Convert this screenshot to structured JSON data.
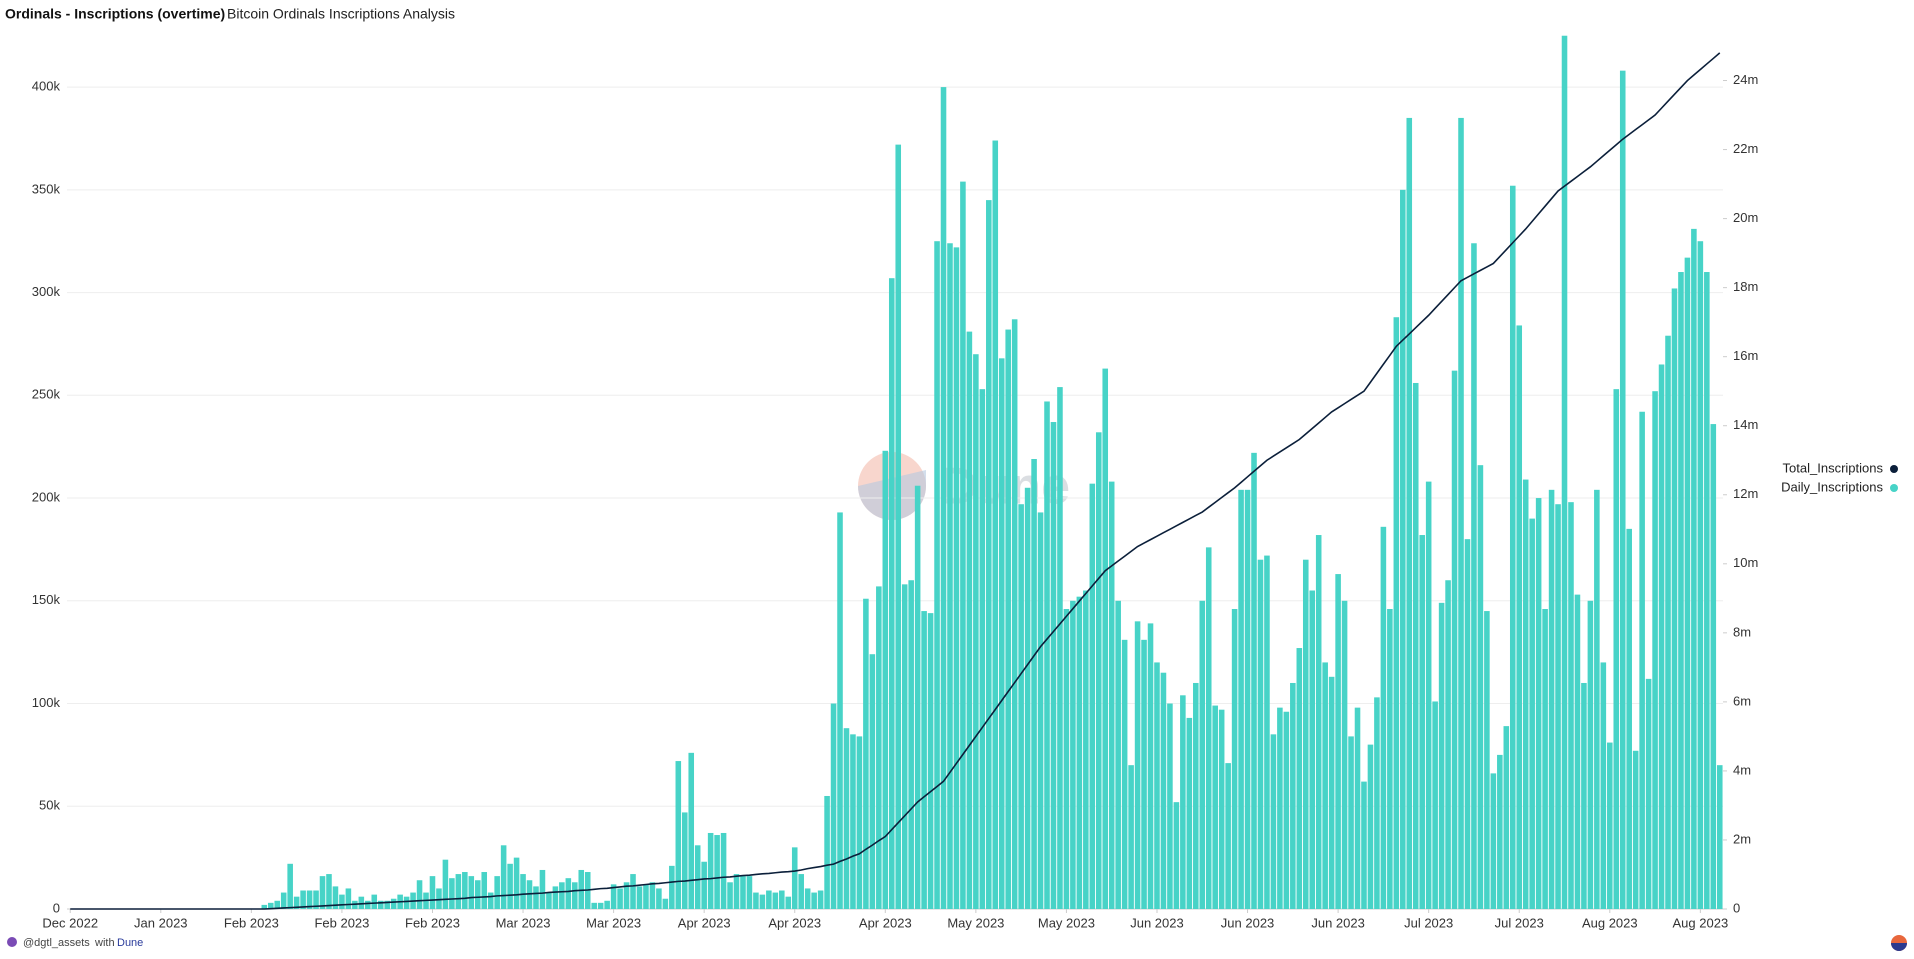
{
  "header": {
    "title": "Ordinals - Inscriptions (overtime)",
    "subtitle": "Bitcoin Ordinals Inscriptions Analysis"
  },
  "footer": {
    "author": "@dgtl_assets",
    "with": "with",
    "brand": "Dune"
  },
  "watermark": "Dune",
  "chart_data": {
    "type": "bar",
    "legend": "right",
    "grid": true,
    "categories": [
      "Dec 2022",
      null,
      null,
      null,
      null,
      null,
      null,
      null,
      null,
      null,
      null,
      null,
      null,
      null,
      "Jan 2023",
      null,
      null,
      null,
      null,
      null,
      null,
      null,
      null,
      null,
      null,
      null,
      null,
      null,
      "Feb 2023",
      null,
      null,
      null,
      null,
      null,
      null,
      null,
      null,
      null,
      null,
      null,
      null,
      null,
      "Feb 2023",
      null,
      null,
      null,
      null,
      null,
      null,
      null,
      null,
      null,
      null,
      null,
      null,
      null,
      "Feb 2023",
      null,
      null,
      null,
      null,
      null,
      null,
      null,
      null,
      null,
      null,
      null,
      null,
      null,
      "Mar 2023",
      null,
      null,
      null,
      null,
      null,
      null,
      null,
      null,
      null,
      null,
      null,
      null,
      null,
      "Mar 2023",
      null,
      null,
      null,
      null,
      null,
      null,
      null,
      null,
      null,
      null,
      null,
      null,
      null,
      "Apr 2023",
      null,
      null,
      null,
      null,
      null,
      null,
      null,
      null,
      null,
      null,
      null,
      null,
      null,
      "Apr 2023",
      null,
      null,
      null,
      null,
      null,
      null,
      null,
      null,
      null,
      null,
      null,
      null,
      null,
      "Apr 2023",
      null,
      null,
      null,
      null,
      null,
      null,
      null,
      null,
      null,
      null,
      null,
      null,
      null,
      "May 2023",
      null,
      null,
      null,
      null,
      null,
      null,
      null,
      null,
      null,
      null,
      null,
      null,
      null,
      "May 2023",
      null,
      null,
      null,
      null,
      null,
      null,
      null,
      null,
      null,
      null,
      null,
      null,
      null,
      "Jun 2023",
      null,
      null,
      null,
      null,
      null,
      null,
      null,
      null,
      null,
      null,
      null,
      null,
      null,
      "Jun 2023",
      null,
      null,
      null,
      null,
      null,
      null,
      null,
      null,
      null,
      null,
      null,
      null,
      null,
      "Jun 2023",
      null,
      null,
      null,
      null,
      null,
      null,
      null,
      null,
      null,
      null,
      null,
      null,
      null,
      "Jul 2023",
      null,
      null,
      null,
      null,
      null,
      null,
      null,
      null,
      null,
      null,
      null,
      null,
      null,
      "Jul 2023",
      null,
      null,
      null,
      null,
      null,
      null,
      null,
      null,
      null,
      null,
      null,
      null,
      null,
      "Aug 2023",
      null,
      null,
      null,
      null,
      null,
      null,
      null,
      null,
      null,
      null,
      null,
      null,
      null,
      "Aug 2023",
      null,
      null,
      null
    ],
    "ylim": [
      0,
      420000
    ],
    "yticks": [
      0,
      {
        "value": 50000,
        "label": "50k"
      },
      {
        "value": 100000,
        "label": "100k"
      },
      {
        "value": 150000,
        "label": "150k"
      },
      {
        "value": 200000,
        "label": "200k"
      },
      {
        "value": 250000,
        "label": "250k"
      },
      {
        "value": 300000,
        "label": "300k"
      },
      {
        "value": 350000,
        "label": "350k"
      },
      {
        "value": 400000,
        "label": "400k"
      }
    ],
    "y2lim": [
      0,
      25000000
    ],
    "y2ticks": [
      0,
      {
        "value": 2000000,
        "label": "2m"
      },
      {
        "value": 4000000,
        "label": "4m"
      },
      {
        "value": 6000000,
        "label": "6m"
      },
      {
        "value": 8000000,
        "label": "8m"
      },
      {
        "value": 10000000,
        "label": "10m"
      },
      {
        "value": 12000000,
        "label": "12m"
      },
      {
        "value": 14000000,
        "label": "14m"
      },
      {
        "value": 16000000,
        "label": "16m"
      },
      {
        "value": 18000000,
        "label": "18m"
      },
      {
        "value": 20000000,
        "label": "20m"
      },
      {
        "value": 22000000,
        "label": "22m"
      },
      {
        "value": 24000000,
        "label": "24m"
      }
    ],
    "series": [
      {
        "name": "Total_Inscriptions",
        "type": "line",
        "axis": "y2",
        "color": "#0b1f3a",
        "values": [
          0,
          0,
          0,
          0,
          0,
          0,
          0,
          0,
          0,
          0,
          0,
          0,
          0,
          0,
          0,
          0,
          0,
          0,
          0,
          0,
          0,
          0,
          0,
          0,
          0,
          0,
          0,
          0,
          0,
          0,
          0,
          10000.0,
          20000.0,
          30000.0,
          40000.0,
          50000.0,
          60000.0,
          70000.0,
          80000.0,
          90000.0,
          100000.0,
          110000.0,
          120000.0,
          130000.0,
          140000.0,
          150000.0,
          160000.0,
          170000.0,
          180000.0,
          190000.0,
          200000.0,
          210000.0,
          220000.0,
          230000.0,
          240000.0,
          250000.0,
          260000.0,
          270000.0,
          280000.0,
          290000.0,
          300000.0,
          310000.0,
          330000.0,
          340000.0,
          350000.0,
          360000.0,
          380000.0,
          390000.0,
          400000.0,
          410000.0,
          430000.0,
          440000.0,
          450000.0,
          460000.0,
          480000.0,
          490000.0,
          500000.0,
          510000.0,
          530000.0,
          540000.0,
          550000.0,
          570000.0,
          590000.0,
          600000.0,
          620000.0,
          640000.0,
          660000.0,
          670000.0,
          690000.0,
          710000.0,
          730000.0,
          740000.0,
          760000.0,
          780000.0,
          800000.0,
          810000.0,
          830000.0,
          850000.0,
          870000.0,
          880000.0,
          900000.0,
          920000.0,
          930000.0,
          950000.0,
          970000.0,
          980000.0,
          1000000.0,
          1020000.0,
          1030000.0,
          1050000.0,
          1070000.0,
          1080000.0,
          1100000.0,
          1130000.0,
          1170000.0,
          1200000.0,
          1230000.0,
          1270000.0,
          1300000.0,
          1380000.0,
          1450000.0,
          1530000.0,
          1600000.0,
          1730000.0,
          1850000.0,
          1980000.0,
          2100000.0,
          2300000.0,
          2500000.0,
          2700000.0,
          2900000.0,
          3100000.0,
          3250000.0,
          3400000.0,
          3550000.0,
          3700000.0,
          3960000.0,
          4220000.0,
          4480000.0,
          4740000.0,
          5000000.0,
          5260000.0,
          5520000.0,
          5780000.0,
          6040000.0,
          6300000.0,
          6560000.0,
          6820000.0,
          7080000.0,
          7340000.0,
          7600000.0,
          7820000.0,
          8040000.0,
          8260000.0,
          8480000.0,
          8700000.0,
          8920000.0,
          9140000.0,
          9360000.0,
          9580000.0,
          9800000.0,
          9940000.0,
          10080000.0,
          10220000.0,
          10360000.0,
          10500000.0,
          10600000.0,
          10700000.0,
          10800000.0,
          10900000.0,
          11000000.0,
          11100000.0,
          11200000.0,
          11300000.0,
          11400000.0,
          11500000.0,
          11640000.0,
          11780000.0,
          11920000.0,
          12060000.0,
          12200000.0,
          12360000.0,
          12520000.0,
          12680000.0,
          12840000.0,
          13000000.0,
          13120000.0,
          13240000.0,
          13360000.0,
          13480000.0,
          13600000.0,
          13760000.0,
          13920000.0,
          14080000.0,
          14240000.0,
          14400000.0,
          14520000.0,
          14640000.0,
          14760000.0,
          14880000.0,
          15000000.0,
          15260000.0,
          15520000.0,
          15780000.0,
          16040000.0,
          16300000.0,
          16480000.0,
          16660000.0,
          16840000.0,
          17020000.0,
          17200000.0,
          17400000.0,
          17600000.0,
          17800000.0,
          18000000.0,
          18200000.0,
          18300000.0,
          18400000.0,
          18500000.0,
          18600000.0,
          18700000.0,
          18900000.0,
          19100000.0,
          19300000.0,
          19500000.0,
          19700000.0,
          19920000.0,
          20140000.0,
          20360000.0,
          20580000.0,
          20800000.0,
          20940000.0,
          21080000.0,
          21220000.0,
          21360000.0,
          21500000.0,
          21660000.0,
          21820000.0,
          21980000.0,
          22140000.0,
          22300000.0,
          22440000.0,
          22580000.0,
          22720000.0,
          22860000.0,
          23000000.0,
          23200000.0,
          23400000.0,
          23600000.0,
          23800000.0,
          24000000.0,
          24160000.0,
          24320000.0,
          24480000.0,
          24640000.0,
          24800000.0
        ]
      },
      {
        "name": "Daily_Inscriptions",
        "type": "bar",
        "color": "#47d3c7",
        "values": [
          0,
          0,
          0,
          0,
          0,
          0,
          0,
          0,
          0,
          0,
          0,
          0,
          0,
          0,
          0,
          0,
          0,
          0,
          0,
          0,
          0,
          0,
          0,
          0,
          0,
          0,
          0,
          0,
          0,
          0,
          2000.0,
          3000.0,
          4000.0,
          8000.0,
          22000.0,
          6000.0,
          9000.0,
          9000.0,
          9000.0,
          16000.0,
          17000.0,
          11000.0,
          7000.0,
          10000.0,
          4000.0,
          6000.0,
          4000.0,
          7000.0,
          4000.0,
          4000.0,
          5000.0,
          7000.0,
          6000.0,
          8000.0,
          14000.0,
          8000.0,
          16000.0,
          10000.0,
          24000.0,
          15000.0,
          17000.0,
          18000.0,
          16000.0,
          14000.0,
          18000.0,
          8000.0,
          16000.0,
          31000.0,
          22000.0,
          25000.0,
          17000.0,
          14000.0,
          11000.0,
          19000.0,
          8000.0,
          11000.0,
          13000.0,
          15000.0,
          13000.0,
          19000.0,
          18000.0,
          3000.0,
          3000.0,
          4000.0,
          12000.0,
          10000.0,
          13000.0,
          17000.0,
          11000.0,
          12000.0,
          13000.0,
          10000.0,
          5000.0,
          21000.0,
          72000.0,
          47000.0,
          76000.0,
          31000.0,
          23000.0,
          37000.0,
          36000.0,
          37000.0,
          13000.0,
          17000.0,
          16000.0,
          16000.0,
          8000.0,
          7000.0,
          9000.0,
          8000.0,
          9000.0,
          6000.0,
          30000.0,
          17000.0,
          10000.0,
          8000.0,
          9000.0,
          55000.0,
          100000.0,
          193000.0,
          88000.0,
          85000.0,
          84000.0,
          151000.0,
          124000.0,
          157000.0,
          223000.0,
          307000.0,
          372000.0,
          158000.0,
          160000.0,
          206000.0,
          145000.0,
          144000.0,
          325000.0,
          400000.0,
          324000.0,
          322000.0,
          354000.0,
          281000.0,
          270000.0,
          253000.0,
          345000.0,
          374000.0,
          268000.0,
          282000.0,
          287000.0,
          197000.0,
          205000.0,
          219000.0,
          193000.0,
          247000.0,
          237000.0,
          254000.0,
          146000.0,
          150000.0,
          152000.0,
          155000.0,
          207000.0,
          232000.0,
          263000.0,
          208000.0,
          150000.0,
          131000.0,
          70000.0,
          140000.0,
          131000.0,
          139000.0,
          120000.0,
          115000.0,
          100000.0,
          52000.0,
          104000.0,
          93000.0,
          110000.0,
          150000.0,
          176000.0,
          99000.0,
          97000.0,
          71000.0,
          146000.0,
          204000.0,
          204000.0,
          222000.0,
          170000.0,
          172000.0,
          85000.0,
          98000.0,
          96000.0,
          110000.0,
          127000.0,
          170000.0,
          155000.0,
          182000.0,
          120000.0,
          113000.0,
          163000.0,
          150000.0,
          84000.0,
          98000.0,
          62000.0,
          80000.0,
          103000.0,
          186000.0,
          146000.0,
          288000.0,
          350000.0,
          385000.0,
          256000.0,
          182000.0,
          208000.0,
          101000.0,
          149000.0,
          160000.0,
          262000.0,
          385000.0,
          180000.0,
          324000.0,
          216000.0,
          145000.0,
          66000.0,
          75000.0,
          89000.0,
          352000.0,
          284000.0,
          209000.0,
          190000.0,
          200000.0,
          146000.0,
          204000.0,
          197000.0,
          425000.0,
          198000.0,
          153000.0,
          110000.0,
          150000.0,
          204000.0,
          120000.0,
          81000.0,
          253000.0,
          408000.0,
          185000.0,
          77000.0,
          242000.0,
          112000.0,
          252000.0,
          265000.0,
          279000.0,
          302000.0,
          310000.0,
          317000.0,
          331000.0,
          325000.0,
          310000.0,
          236000.0,
          70000.0
        ]
      }
    ]
  }
}
